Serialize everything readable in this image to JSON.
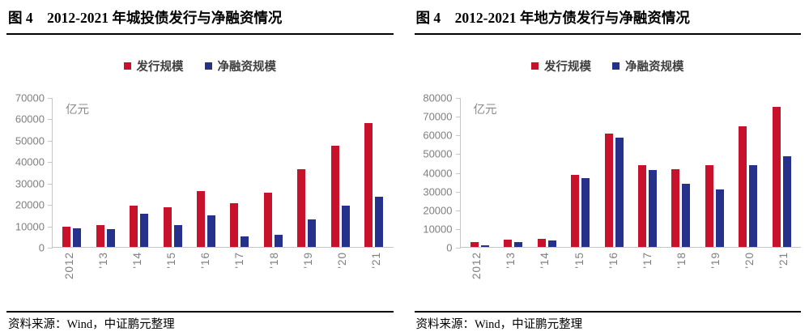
{
  "source_note": "资料来源：Wind，中证鹏元整理",
  "colors": {
    "issuance_red": "#c8122b",
    "net_financing_blue": "#26318b",
    "axis_line": "#c6c6c6",
    "axis_label": "#7f7f7f",
    "legend_text": "#3f3f3f",
    "rule_black": "#000000"
  },
  "chart_data": [
    {
      "type": "bar",
      "title": "图 4　2012-2021 年城投债发行与净融资情况",
      "unit": "亿元",
      "categories": [
        "2012",
        "'13",
        "'14",
        "'15",
        "'16",
        "'17",
        "'18",
        "'19",
        "'20",
        "'21"
      ],
      "series": [
        {
          "name": "发行规模",
          "color": "#c8122b",
          "values": [
            9500,
            10300,
            19200,
            18500,
            26200,
            20300,
            25300,
            36400,
            47200,
            58000
          ]
        },
        {
          "name": "净融资规模",
          "color": "#26318b",
          "values": [
            8600,
            8300,
            15400,
            10300,
            14600,
            5100,
            5800,
            13000,
            19500,
            23600
          ]
        }
      ],
      "ylim": [
        0,
        70000
      ],
      "ytick_step": 10000,
      "xlabel": "",
      "ylabel": "亿元",
      "legend_position": "top",
      "grid": false
    },
    {
      "type": "bar",
      "title": "图 4　2012-2021 年地方债发行与净融资情况",
      "unit": "亿元",
      "categories": [
        "2012",
        "'13",
        "'14",
        "'15",
        "'16",
        "'17",
        "'18",
        "'19",
        "'20",
        "'21"
      ],
      "series": [
        {
          "name": "发行规模",
          "color": "#c8122b",
          "values": [
            2800,
            3700,
            4200,
            38400,
            60500,
            43600,
            41700,
            43600,
            64400,
            74900
          ]
        },
        {
          "name": "净融资规模",
          "color": "#26318b",
          "values": [
            800,
            2600,
            3400,
            36800,
            58500,
            41300,
            33700,
            30900,
            43900,
            48400
          ]
        }
      ],
      "ylim": [
        0,
        80000
      ],
      "ytick_step": 10000,
      "xlabel": "",
      "ylabel": "亿元",
      "legend_position": "top",
      "grid": false
    }
  ]
}
